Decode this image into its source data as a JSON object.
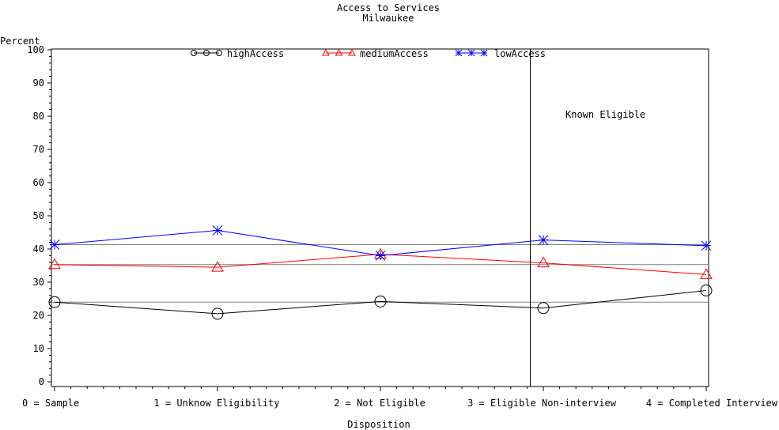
{
  "chart_data": {
    "type": "line",
    "title": "Access to Services",
    "subtitle": "Milwaukee",
    "ylabel": "Percent",
    "xlabel": "Disposition",
    "categories": [
      "0 = Sample",
      "1 = Unknow Eligibility",
      "2 = Not Eligible",
      "3 = Eligible Non-interview",
      "4 = Completed Interview"
    ],
    "ylim": [
      0,
      100
    ],
    "yticks": [
      0,
      10,
      20,
      30,
      40,
      50,
      60,
      70,
      80,
      90,
      100
    ],
    "series": [
      {
        "name": "highAccess",
        "color": "#000000",
        "marker": "circle",
        "values": [
          24,
          20.5,
          24.2,
          22.2,
          27.5
        ]
      },
      {
        "name": "mediumAccess",
        "color": "#ff0000",
        "marker": "triangle",
        "values": [
          35.3,
          34.5,
          38.4,
          35.8,
          32.3
        ]
      },
      {
        "name": "lowAccess",
        "color": "#0000ff",
        "marker": "star",
        "values": [
          41.3,
          45.6,
          38.0,
          42.7,
          41.0
        ]
      }
    ],
    "reference_lines": [
      {
        "value": 24,
        "color": "#808080"
      },
      {
        "value": 35.3,
        "color": "#808080"
      },
      {
        "value": 41.3,
        "color": "#808080"
      }
    ],
    "vertical_divider_after_category": 2.92,
    "annotation": "Known Eligible",
    "legend_position": "top",
    "grid": false
  }
}
